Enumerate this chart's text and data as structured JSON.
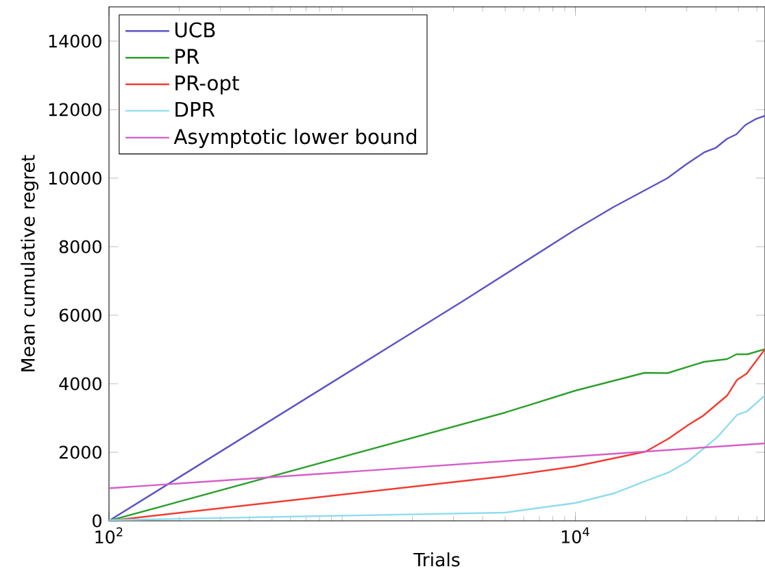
{
  "chart_data": {
    "type": "line",
    "xlabel": "Trials",
    "ylabel": "Mean cumulative regret",
    "log": "x",
    "xlim": [
      100,
      65000
    ],
    "ylim": [
      0,
      15000
    ],
    "xticks": [
      {
        "value": 100,
        "label": "10$^{2}$"
      },
      {
        "value": 10000,
        "label": "10$^{4}$"
      }
    ],
    "yticks": [
      0,
      2000,
      4000,
      6000,
      8000,
      10000,
      12000,
      14000
    ],
    "grid": false,
    "legend": "top left",
    "marker": "none",
    "line_style": "solid",
    "series": [
      {
        "name": "UCB",
        "color": "#5b53c4",
        "x": [
          100,
          3360,
          10000,
          14500,
          24800,
          29800,
          35600,
          39900,
          44700,
          49000,
          53500,
          59100,
          65000
        ],
        "values": [
          0,
          6450,
          8500,
          9150,
          10000,
          10400,
          10750,
          10880,
          11150,
          11280,
          11550,
          11720,
          11820
        ]
      },
      {
        "name": "PR",
        "color": "#2ca02c",
        "x": [
          100,
          5000,
          10000,
          19800,
          24800,
          35600,
          44700,
          49000,
          54700,
          65000
        ],
        "values": [
          0,
          3160,
          3800,
          4320,
          4310,
          4640,
          4720,
          4860,
          4860,
          5010
        ]
      },
      {
        "name": "PR-opt",
        "color": "#f03c32",
        "x": [
          100,
          5000,
          10000,
          20000,
          25100,
          30500,
          35200,
          44800,
          49300,
          54300,
          65000
        ],
        "values": [
          0,
          1300,
          1590,
          2020,
          2400,
          2800,
          3060,
          3660,
          4110,
          4300,
          5010
        ]
      },
      {
        "name": "DPR",
        "color": "#8fdcef",
        "x": [
          100,
          5000,
          10000,
          14800,
          20200,
          25100,
          30500,
          35200,
          40700,
          49300,
          54300,
          65000
        ],
        "values": [
          20,
          240,
          520,
          810,
          1170,
          1410,
          1740,
          2090,
          2450,
          3090,
          3190,
          3660
        ]
      },
      {
        "name": "Asymptotic lower bound",
        "color": "#d45fc8",
        "x": [
          100,
          65000
        ],
        "values": [
          950,
          2260
        ]
      }
    ]
  }
}
